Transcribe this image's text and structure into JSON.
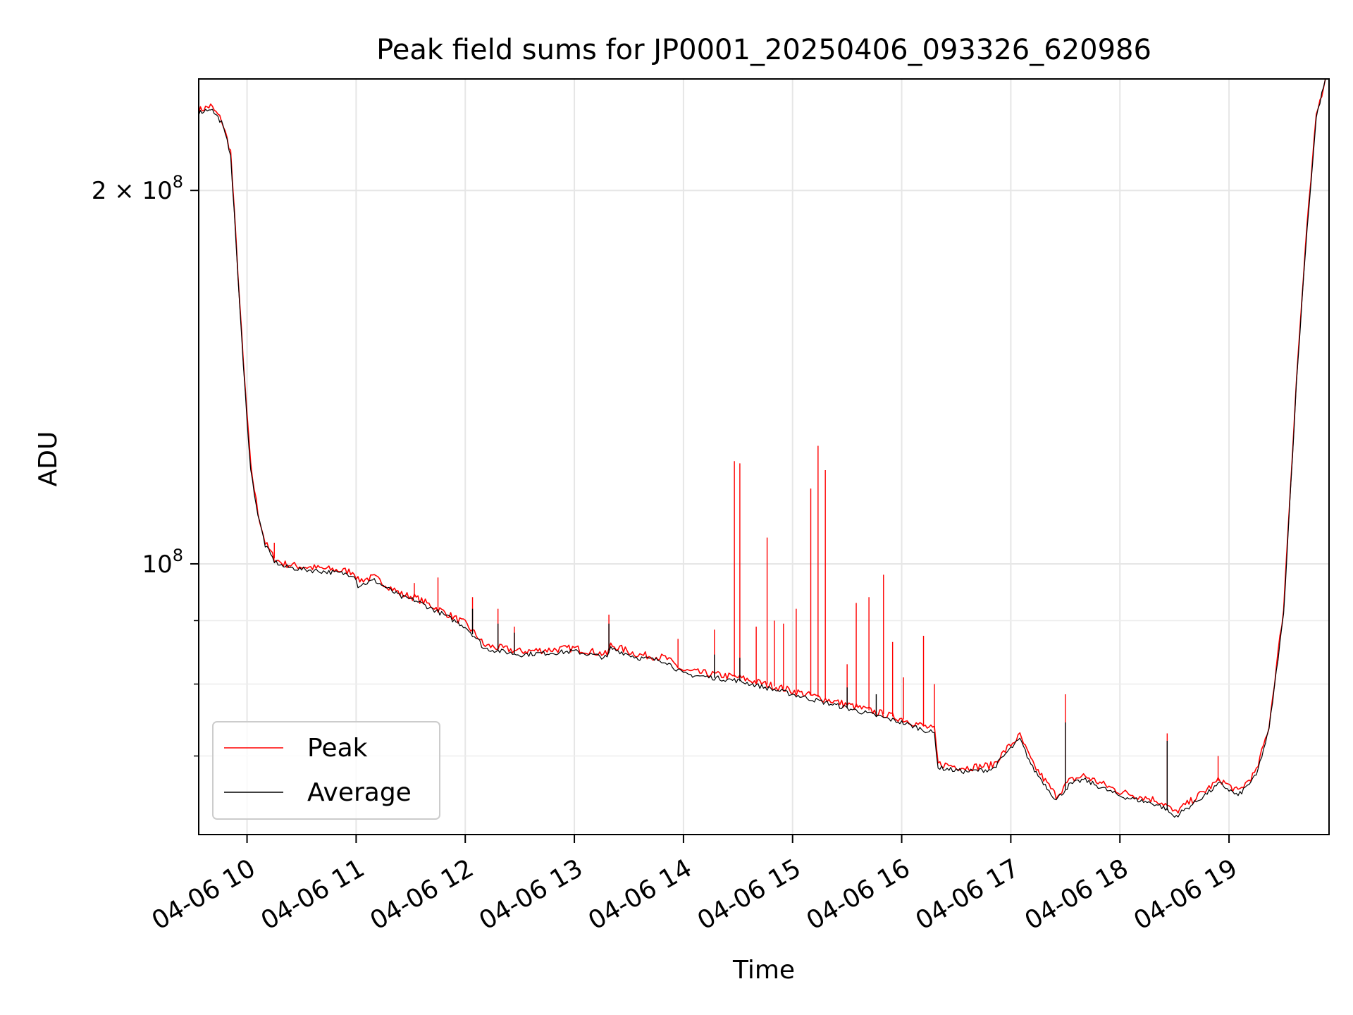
{
  "chart_data": {
    "type": "line",
    "title": "Peak field sums for JP0001_20250406_093326_620986",
    "xlabel": "Time",
    "ylabel": "ADU",
    "y_scale": "log",
    "ylim": [
      60500000,
      246000000
    ],
    "xlim": [
      "2025-04-06 09:33:26",
      "2025-04-06 19:55:00"
    ],
    "x_ticks": [
      "04-06 10",
      "04-06 11",
      "04-06 12",
      "04-06 13",
      "04-06 14",
      "04-06 15",
      "04-06 16",
      "04-06 17",
      "04-06 18",
      "04-06 19"
    ],
    "y_major_ticks": [
      {
        "value": 100000000,
        "base": "10",
        "exp": "8",
        "mult": ""
      },
      {
        "value": 200000000,
        "base": "10",
        "exp": "8",
        "mult": "2 × "
      }
    ],
    "y_minor_ticks": [
      70000000,
      80000000,
      90000000
    ],
    "grid": true,
    "legend_position": "lower-left",
    "colors": {
      "Peak": "#ff0000",
      "Average": "#000000"
    },
    "series": [
      {
        "name": "Peak",
        "x": [
          "2025-04-06 09:33:26",
          "2025-04-06 09:40",
          "2025-04-06 09:46",
          "2025-04-06 09:51",
          "2025-04-06 09:58",
          "2025-04-06 10:02",
          "2025-04-06 10:06",
          "2025-04-06 10:10",
          "2025-04-06 10:15",
          "2025-04-06 10:20",
          "2025-04-06 10:30",
          "2025-04-06 10:45",
          "2025-04-06 10:59",
          "2025-04-06 11:01",
          "2025-04-06 11:10",
          "2025-04-06 11:25",
          "2025-04-06 11:32",
          "2025-04-06 11:45",
          "2025-04-06 12:00",
          "2025-04-06 12:08",
          "2025-04-06 12:10",
          "2025-04-06 12:30",
          "2025-04-06 13:00",
          "2025-04-06 13:18",
          "2025-04-06 13:20",
          "2025-04-06 13:35",
          "2025-04-06 13:50",
          "2025-04-06 14:00",
          "2025-04-06 14:30",
          "2025-04-06 15:00",
          "2025-04-06 15:30",
          "2025-04-06 16:00",
          "2025-04-06 16:18",
          "2025-04-06 16:20",
          "2025-04-06 16:35",
          "2025-04-06 16:50",
          "2025-04-06 16:58",
          "2025-04-06 17:05",
          "2025-04-06 17:12",
          "2025-04-06 17:25",
          "2025-04-06 17:32",
          "2025-04-06 17:40",
          "2025-04-06 17:50",
          "2025-04-06 18:00",
          "2025-04-06 18:20",
          "2025-04-06 18:25",
          "2025-04-06 18:30",
          "2025-04-06 18:40",
          "2025-04-06 18:55",
          "2025-04-06 19:05",
          "2025-04-06 19:15",
          "2025-04-06 19:22",
          "2025-04-06 19:30",
          "2025-04-06 19:37",
          "2025-04-06 19:42",
          "2025-04-06 19:48",
          "2025-04-06 19:53"
        ],
        "values": [
          232000000,
          234000000,
          228000000,
          215000000,
          145000000,
          120000000,
          110000000,
          104000000,
          101000000,
          100000000,
          99500000,
          99000000,
          98500000,
          97000000,
          97500000,
          94500000,
          94000000,
          92000000,
          89500000,
          87000000,
          86000000,
          85000000,
          85500000,
          84500000,
          86000000,
          84500000,
          84000000,
          82000000,
          81000000,
          79000000,
          77000000,
          75000000,
          73500000,
          69000000,
          68500000,
          68800000,
          71000000,
          72700000,
          69000000,
          65000000,
          66800000,
          67500000,
          66500000,
          65500000,
          64500000,
          64000000,
          63000000,
          64500000,
          67000000,
          65500000,
          68000000,
          74000000,
          92000000,
          140000000,
          180000000,
          230000000,
          246000000
        ],
        "spikes": [
          {
            "x": "2025-04-06 10:02",
            "value": 120000000
          },
          {
            "x": "2025-04-06 10:15",
            "value": 104000000
          },
          {
            "x": "2025-04-06 11:32",
            "value": 96500000
          },
          {
            "x": "2025-04-06 11:45",
            "value": 97500000
          },
          {
            "x": "2025-04-06 12:04",
            "value": 94000000
          },
          {
            "x": "2025-04-06 12:18",
            "value": 92000000
          },
          {
            "x": "2025-04-06 12:27",
            "value": 89000000
          },
          {
            "x": "2025-04-06 13:19",
            "value": 91000000
          },
          {
            "x": "2025-04-06 13:57",
            "value": 87000000
          },
          {
            "x": "2025-04-06 14:17",
            "value": 88500000
          },
          {
            "x": "2025-04-06 14:28",
            "value": 121000000
          },
          {
            "x": "2025-04-06 14:31",
            "value": 120500000
          },
          {
            "x": "2025-04-06 14:40",
            "value": 89000000
          },
          {
            "x": "2025-04-06 14:46",
            "value": 105000000
          },
          {
            "x": "2025-04-06 14:50",
            "value": 90000000
          },
          {
            "x": "2025-04-06 14:55",
            "value": 89500000
          },
          {
            "x": "2025-04-06 15:02",
            "value": 92000000
          },
          {
            "x": "2025-04-06 15:10",
            "value": 115000000
          },
          {
            "x": "2025-04-06 15:14",
            "value": 124500000
          },
          {
            "x": "2025-04-06 15:18",
            "value": 119000000
          },
          {
            "x": "2025-04-06 15:30",
            "value": 83000000
          },
          {
            "x": "2025-04-06 15:35",
            "value": 93000000
          },
          {
            "x": "2025-04-06 15:42",
            "value": 94000000
          },
          {
            "x": "2025-04-06 15:50",
            "value": 98000000
          },
          {
            "x": "2025-04-06 15:55",
            "value": 86500000
          },
          {
            "x": "2025-04-06 16:01",
            "value": 81000000
          },
          {
            "x": "2025-04-06 16:12",
            "value": 87500000
          },
          {
            "x": "2025-04-06 16:18",
            "value": 80000000
          },
          {
            "x": "2025-04-06 17:30",
            "value": 78500000
          },
          {
            "x": "2025-04-06 18:26",
            "value": 73000000
          },
          {
            "x": "2025-04-06 18:54",
            "value": 70000000
          }
        ]
      },
      {
        "name": "Average",
        "x": [
          "2025-04-06 09:33:26",
          "2025-04-06 09:40",
          "2025-04-06 09:46",
          "2025-04-06 09:51",
          "2025-04-06 09:58",
          "2025-04-06 10:02",
          "2025-04-06 10:06",
          "2025-04-06 10:10",
          "2025-04-06 10:15",
          "2025-04-06 10:20",
          "2025-04-06 10:30",
          "2025-04-06 10:45",
          "2025-04-06 10:59",
          "2025-04-06 11:01",
          "2025-04-06 11:10",
          "2025-04-06 11:25",
          "2025-04-06 11:32",
          "2025-04-06 11:45",
          "2025-04-06 12:00",
          "2025-04-06 12:08",
          "2025-04-06 12:10",
          "2025-04-06 12:30",
          "2025-04-06 13:00",
          "2025-04-06 13:18",
          "2025-04-06 13:20",
          "2025-04-06 13:35",
          "2025-04-06 13:50",
          "2025-04-06 14:00",
          "2025-04-06 14:30",
          "2025-04-06 15:00",
          "2025-04-06 15:30",
          "2025-04-06 16:00",
          "2025-04-06 16:18",
          "2025-04-06 16:20",
          "2025-04-06 16:35",
          "2025-04-06 16:50",
          "2025-04-06 16:58",
          "2025-04-06 17:05",
          "2025-04-06 17:12",
          "2025-04-06 17:25",
          "2025-04-06 17:32",
          "2025-04-06 17:40",
          "2025-04-06 17:50",
          "2025-04-06 18:00",
          "2025-04-06 18:20",
          "2025-04-06 18:25",
          "2025-04-06 18:30",
          "2025-04-06 18:40",
          "2025-04-06 18:55",
          "2025-04-06 19:05",
          "2025-04-06 19:15",
          "2025-04-06 19:22",
          "2025-04-06 19:30",
          "2025-04-06 19:37",
          "2025-04-06 19:42",
          "2025-04-06 19:48",
          "2025-04-06 19:53"
        ],
        "values": [
          231000000,
          233000000,
          227000000,
          214000000,
          144000000,
          119000000,
          109500000,
          103500000,
          100500000,
          99500000,
          99000000,
          98500000,
          98000000,
          96000000,
          97000000,
          94000000,
          93500000,
          91500000,
          89000000,
          86500000,
          85500000,
          84500000,
          85000000,
          84000000,
          85500000,
          84000000,
          83500000,
          81500000,
          80500000,
          78500000,
          76500000,
          74500000,
          73000000,
          68500000,
          68000000,
          68300000,
          70500000,
          72200000,
          68500000,
          64500000,
          66300000,
          67000000,
          66000000,
          65000000,
          64000000,
          63500000,
          62500000,
          64000000,
          66500000,
          65000000,
          67500000,
          73500000,
          91000000,
          139000000,
          179000000,
          229000000,
          246000000
        ],
        "spikes": [
          {
            "x": "2025-04-06 12:04",
            "value": 92000000
          },
          {
            "x": "2025-04-06 12:18",
            "value": 89500000
          },
          {
            "x": "2025-04-06 12:27",
            "value": 88000000
          },
          {
            "x": "2025-04-06 13:19",
            "value": 89500000
          },
          {
            "x": "2025-04-06 14:17",
            "value": 84500000
          },
          {
            "x": "2025-04-06 14:31",
            "value": 84000000
          },
          {
            "x": "2025-04-06 15:30",
            "value": 79500000
          },
          {
            "x": "2025-04-06 15:46",
            "value": 78500000
          },
          {
            "x": "2025-04-06 17:30",
            "value": 74500000
          },
          {
            "x": "2025-04-06 18:26",
            "value": 72000000
          }
        ]
      }
    ]
  }
}
